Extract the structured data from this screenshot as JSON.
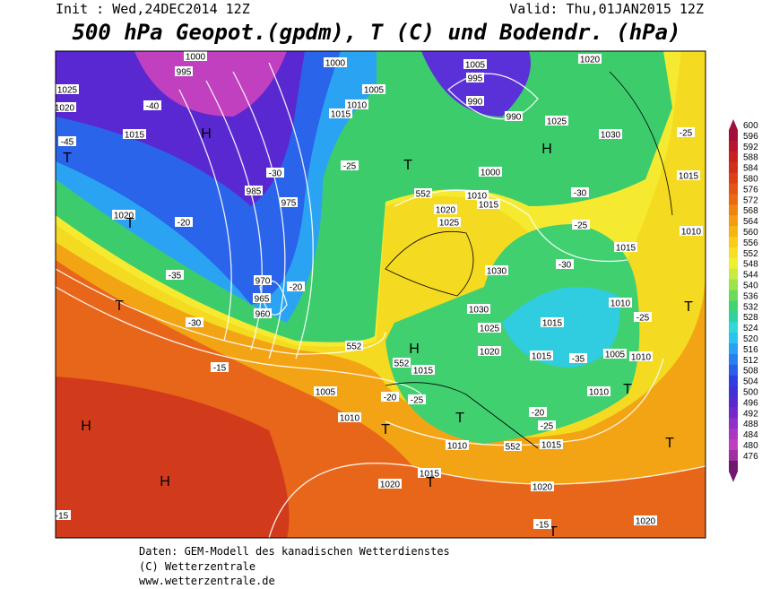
{
  "header": {
    "init": "Init : Wed,24DEC2014 12Z",
    "valid": "Valid: Thu,01JAN2015 12Z",
    "title": "500 hPa Geopot.(gpdm), T (C) und Bodendr. (hPa)"
  },
  "colorbar": {
    "labels": [
      "600",
      "596",
      "592",
      "588",
      "584",
      "580",
      "576",
      "572",
      "568",
      "564",
      "560",
      "556",
      "552",
      "548",
      "544",
      "540",
      "536",
      "532",
      "528",
      "524",
      "520",
      "516",
      "512",
      "508",
      "504",
      "500",
      "496",
      "492",
      "488",
      "484",
      "480",
      "476"
    ],
    "colors": [
      "#a0103a",
      "#b8142e",
      "#c8201f",
      "#d22e1a",
      "#dc4016",
      "#e45414",
      "#ea6a12",
      "#ef8410",
      "#f39c10",
      "#f6b612",
      "#f8cc18",
      "#f6e020",
      "#eef030",
      "#c8ec40",
      "#9ce44a",
      "#6cdc58",
      "#40d470",
      "#30d0a0",
      "#30d8d8",
      "#28c4f0",
      "#28a0f4",
      "#2880f0",
      "#2860ec",
      "#3040e0",
      "#4030d8",
      "#5a28d0",
      "#7428cc",
      "#9030c8",
      "#a838c4",
      "#c040c0",
      "#a030a0",
      "#701870"
    ]
  },
  "map_labels": [
    "995",
    "1000",
    "1025",
    "1020",
    "1015",
    "1020",
    "H",
    "T",
    "T",
    "T",
    "H",
    "H",
    "985",
    "970",
    "965",
    "960",
    "975",
    "1005",
    "1010",
    "1015",
    "1000",
    "1005",
    "995",
    "990",
    "990",
    "1025",
    "1030",
    "1020",
    "H",
    "T",
    "1000",
    "1010",
    "1015",
    "1020",
    "1025",
    "1030",
    "1030",
    "1025",
    "1020",
    "1015",
    "1015",
    "1010",
    "1005",
    "1010",
    "1010",
    "1015",
    "1015",
    "1010",
    "H",
    "1015",
    "1005",
    "1010",
    "1010",
    "1015",
    "1015",
    "1020",
    "1020",
    "1020",
    "T",
    "T",
    "T",
    "T",
    "552",
    "552",
    "552",
    "552",
    "T",
    "T",
    "T",
    "-40",
    "-45",
    "-30",
    "-25",
    "-20",
    "-35",
    "-30",
    "-20",
    "-15",
    "-20",
    "-25",
    "-30",
    "-25",
    "-30",
    "-25",
    "-35",
    "-20",
    "-25",
    "-15",
    "-15",
    "-25"
  ],
  "footer": [
    "Daten: GEM-Modell des kanadischen Wetterdienstes",
    "(C) Wetterzentrale",
    "www.wetterzentrale.de"
  ]
}
